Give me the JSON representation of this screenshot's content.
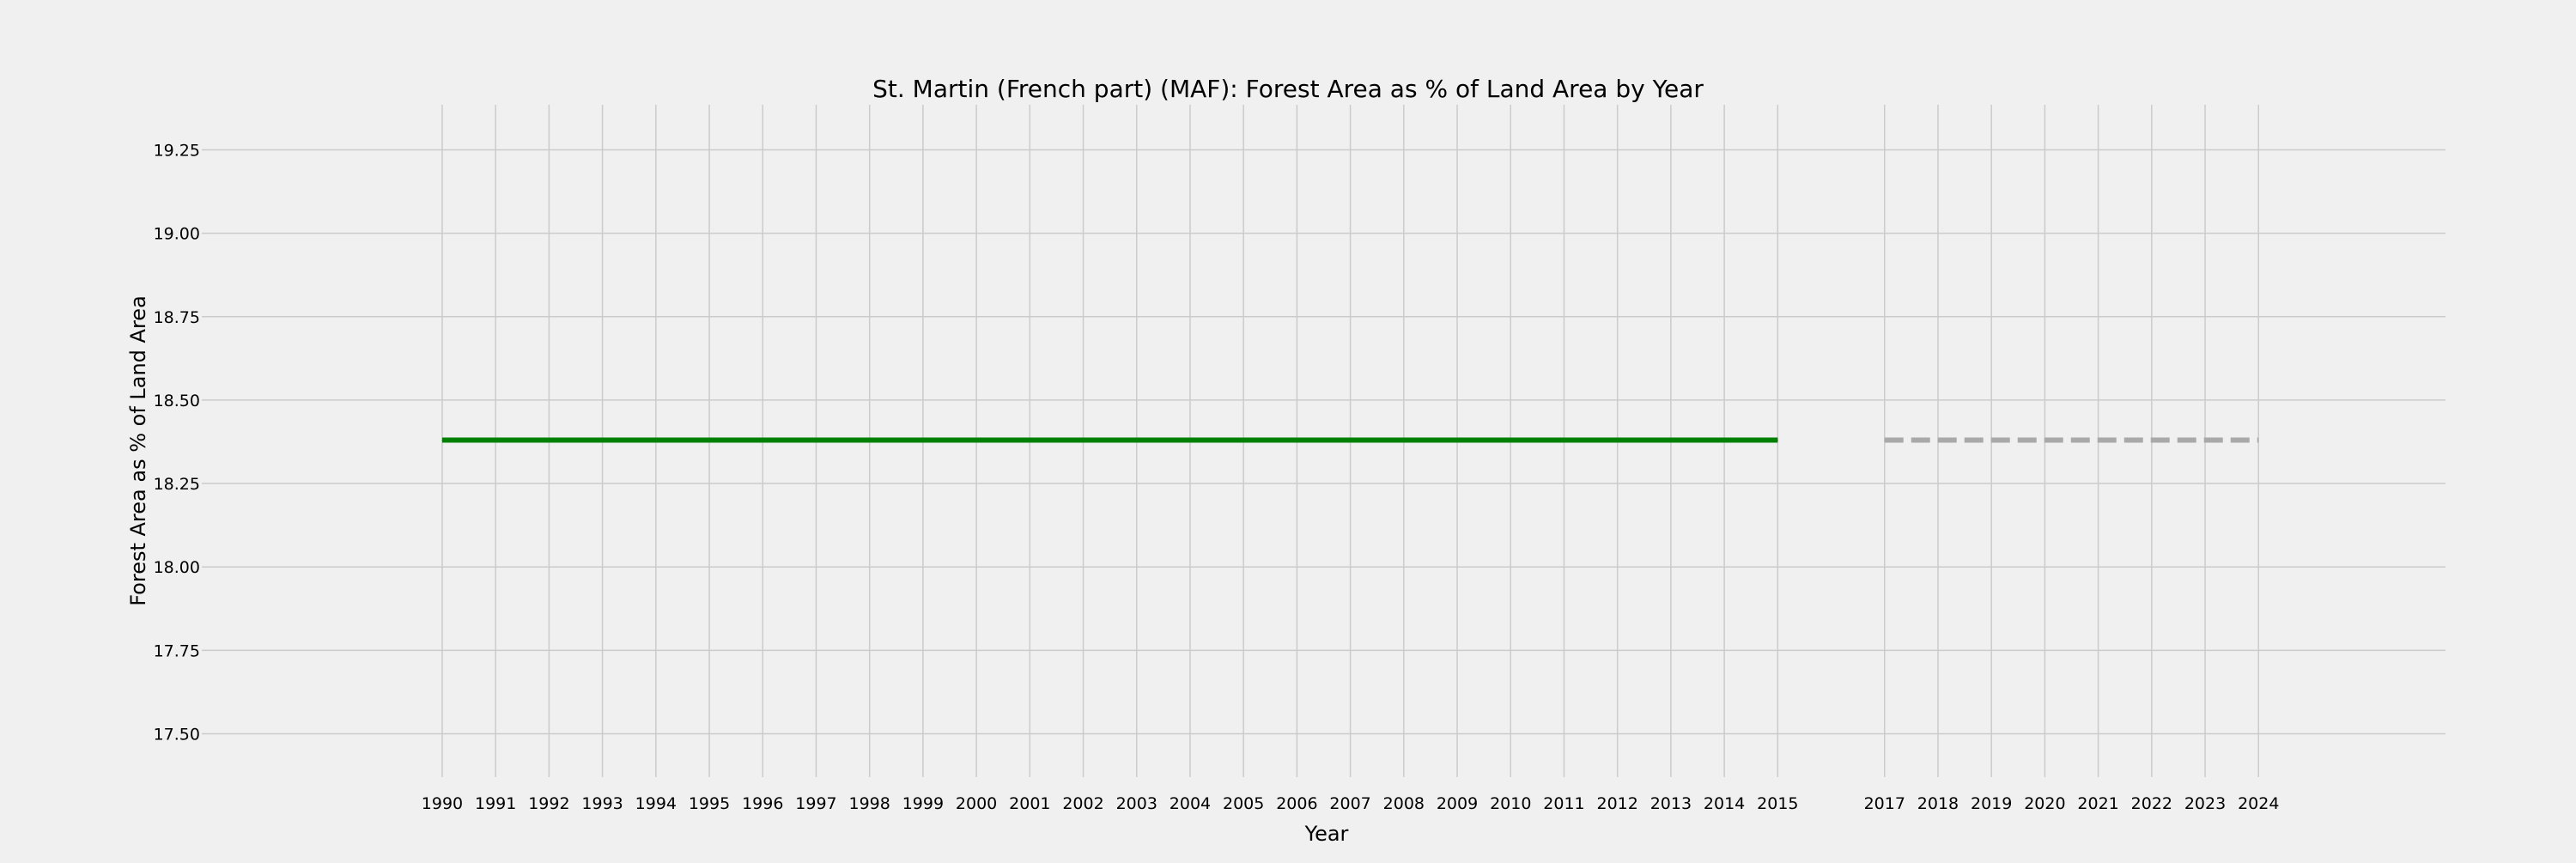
{
  "chart_data": {
    "type": "line",
    "title": "St. Martin (French part) (MAF): Forest Area as % of Land Area by Year",
    "xlabel": "Year",
    "ylabel": "Forest Area as % of Land Area",
    "x_ticks": [
      1990,
      1991,
      1992,
      1993,
      1994,
      1995,
      1996,
      1997,
      1998,
      1999,
      2000,
      2001,
      2002,
      2003,
      2004,
      2005,
      2006,
      2007,
      2008,
      2009,
      2010,
      2011,
      2012,
      2013,
      2014,
      2015,
      2017,
      2018,
      2019,
      2020,
      2021,
      2022,
      2023,
      2024
    ],
    "y_ticks": [
      17.5,
      17.75,
      18.0,
      18.25,
      18.5,
      18.75,
      19.0,
      19.25
    ],
    "xlim": [
      1985.5,
      2027.5
    ],
    "ylim": [
      17.37,
      19.385
    ],
    "grid": true,
    "series": [
      {
        "style": "solid",
        "color": "#008000",
        "x": [
          1990,
          1991,
          1992,
          1993,
          1994,
          1995,
          1996,
          1997,
          1998,
          1999,
          2000,
          2001,
          2002,
          2003,
          2004,
          2005,
          2006,
          2007,
          2008,
          2009,
          2010,
          2011,
          2012,
          2013,
          2014,
          2015
        ],
        "y": [
          18.38,
          18.38,
          18.38,
          18.38,
          18.38,
          18.38,
          18.38,
          18.38,
          18.38,
          18.38,
          18.38,
          18.38,
          18.38,
          18.38,
          18.38,
          18.38,
          18.38,
          18.38,
          18.38,
          18.38,
          18.38,
          18.38,
          18.38,
          18.38,
          18.38,
          18.38
        ]
      },
      {
        "style": "dashed",
        "color": "#a9a9a9",
        "x": [
          2017,
          2018,
          2019,
          2020,
          2021,
          2022,
          2023,
          2024
        ],
        "y": [
          18.38,
          18.38,
          18.38,
          18.38,
          18.38,
          18.38,
          18.38,
          18.38
        ]
      }
    ]
  },
  "colors": {
    "background": "#f0f0f0",
    "grid": "#cbcbcb",
    "text": "#000000"
  }
}
